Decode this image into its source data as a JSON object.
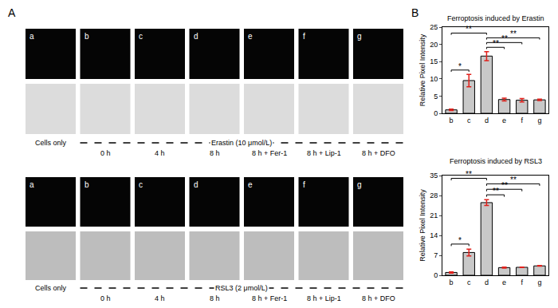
{
  "figure": {
    "panel_labels": [
      "A",
      "B"
    ],
    "rows": [
      {
        "control": "Cells only",
        "treatment": "Erastin (10 μmol/L)",
        "panels": [
          "a",
          "b",
          "c",
          "d",
          "e",
          "f",
          "g"
        ],
        "conditions": [
          "0 h",
          "4 h",
          "8 h",
          "8 h + Fer-1",
          "8 h + Lip-1",
          "8 h + DFO"
        ]
      },
      {
        "control": "Cells only",
        "treatment": "RSL3 (2 μmol/L)",
        "panels": [
          "a",
          "b",
          "c",
          "d",
          "e",
          "f",
          "g"
        ],
        "conditions": [
          "0 h",
          "4 h",
          "8 h",
          "8 h + Fer-1",
          "8 h + Lip-1",
          "8 h + DFO"
        ]
      }
    ]
  },
  "chart_data": [
    {
      "type": "bar",
      "title": "Ferroptosis induced by Erastin",
      "ylabel": "Relative Pixel Intensity",
      "categories": [
        "b",
        "c",
        "d",
        "e",
        "f",
        "g"
      ],
      "values": [
        1.0,
        9.5,
        16.6,
        4.0,
        3.8,
        3.9
      ],
      "errors": [
        0.2,
        1.8,
        1.3,
        0.4,
        0.5,
        0.2
      ],
      "color": "#c8c8c8",
      "ylim": [
        0,
        25
      ],
      "yticks": [
        0,
        5,
        10,
        15,
        20,
        25
      ],
      "grid": false,
      "significance": [
        {
          "from": "b",
          "to": "c",
          "label": "*"
        },
        {
          "from": "d",
          "to": "e",
          "label": "**"
        },
        {
          "from": "d",
          "to": "f",
          "label": "**"
        },
        {
          "from": "d",
          "to": "g",
          "label": "**"
        },
        {
          "from": "b",
          "to": "d",
          "label": "**"
        }
      ]
    },
    {
      "type": "bar",
      "title": "Ferroptosis induced by RSL3",
      "ylabel": "Relative Pixel Intensity",
      "categories": [
        "b",
        "c",
        "d",
        "e",
        "f",
        "g"
      ],
      "values": [
        1.0,
        8.0,
        25.5,
        2.7,
        2.8,
        3.3
      ],
      "errors": [
        0.2,
        1.2,
        1.0,
        0.2,
        0.1,
        0.1
      ],
      "color": "#c8c8c8",
      "ylim": [
        0,
        35
      ],
      "yticks": [
        0,
        7,
        14,
        21,
        28,
        35
      ],
      "grid": false,
      "significance": [
        {
          "from": "b",
          "to": "c",
          "label": "*"
        },
        {
          "from": "d",
          "to": "e",
          "label": "**"
        },
        {
          "from": "d",
          "to": "f",
          "label": "**"
        },
        {
          "from": "d",
          "to": "g",
          "label": "**"
        },
        {
          "from": "b",
          "to": "d",
          "label": "**"
        }
      ]
    }
  ]
}
